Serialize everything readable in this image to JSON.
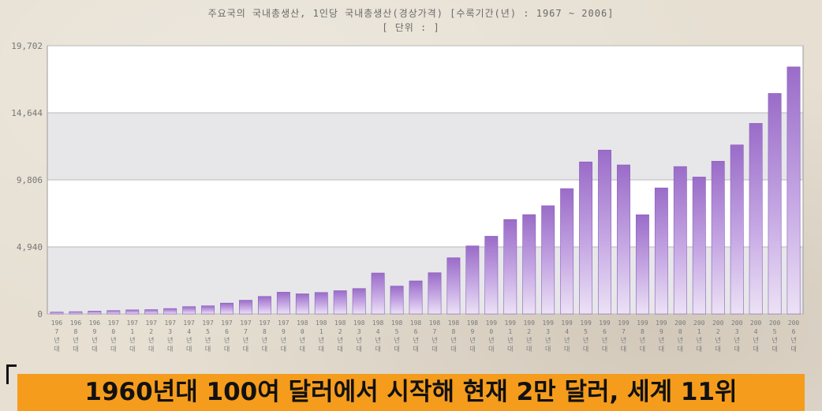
{
  "chart_data": {
    "type": "bar",
    "title": "주요국의 국내총생산, 1인당 국내총생산(경상가격) [수록기간(년) : 1967 ~ 2006]",
    "subtitle": "[ 단위 : ]",
    "ylim": [
      0,
      19702
    ],
    "yticks": [
      "0",
      "4,940",
      "9,806",
      "14,644",
      "19,702"
    ],
    "grid": true,
    "categories": [
      "1967",
      "1968",
      "1969",
      "1970",
      "1971",
      "1972",
      "1973",
      "1974",
      "1975",
      "1976",
      "1977",
      "1978",
      "1979",
      "1980",
      "1981",
      "1982",
      "1983",
      "1984",
      "1985",
      "1986",
      "1987",
      "1988",
      "1989",
      "1990",
      "1991",
      "1992",
      "1993",
      "1994",
      "1995",
      "1996",
      "1997",
      "1998",
      "1999",
      "2000",
      "2001",
      "2002",
      "2003",
      "2004",
      "2005",
      "2006"
    ],
    "tick_labels": [
      "196\n7\n년\n대",
      "196\n8\n년\n대",
      "196\n9\n년\n대",
      "197\n0\n년\n대",
      "197\n1\n년\n대",
      "197\n2\n년\n대",
      "197\n3\n년\n대",
      "197\n4\n년\n대",
      "197\n5\n년\n대",
      "197\n6\n년\n대",
      "197\n7\n년\n대",
      "197\n8\n년\n대",
      "197\n9\n년\n대",
      "198\n0\n년\n대",
      "198\n1\n년\n대",
      "198\n2\n년\n대",
      "198\n3\n년\n대",
      "198\n4\n년\n대",
      "198\n5\n년\n대",
      "198\n6\n년\n대",
      "198\n7\n년\n대",
      "198\n8\n년\n대",
      "198\n9\n년\n대",
      "199\n0\n년\n대",
      "199\n1\n년\n대",
      "199\n2\n년\n대",
      "199\n3\n년\n대",
      "199\n4\n년\n대",
      "199\n5\n년\n대",
      "199\n6\n년\n대",
      "199\n7\n년\n대",
      "199\n8\n년\n대",
      "199\n9\n년\n대",
      "200\n0\n년\n대",
      "200\n1\n년\n대",
      "200\n2\n년\n대",
      "200\n3\n년\n대",
      "200\n4\n년\n대",
      "200\n5\n년\n대",
      "200\n6\n년\n대"
    ],
    "values": [
      140,
      170,
      210,
      250,
      300,
      320,
      400,
      540,
      600,
      800,
      1010,
      1290,
      1600,
      1480,
      1580,
      1710,
      1870,
      3010,
      2050,
      2430,
      3030,
      4130,
      5000,
      5710,
      6940,
      7300,
      7950,
      9210,
      11170,
      12040,
      10950,
      7290,
      9260,
      10830,
      10060,
      11220,
      12420,
      14000,
      16200,
      18150
    ],
    "bar_color": "#a57bd0"
  },
  "caption": {
    "text": "1960년대 100여 달러에서 시작해 현재 2만 달러, 세계 11위",
    "bg_color": "#f59c1c"
  }
}
